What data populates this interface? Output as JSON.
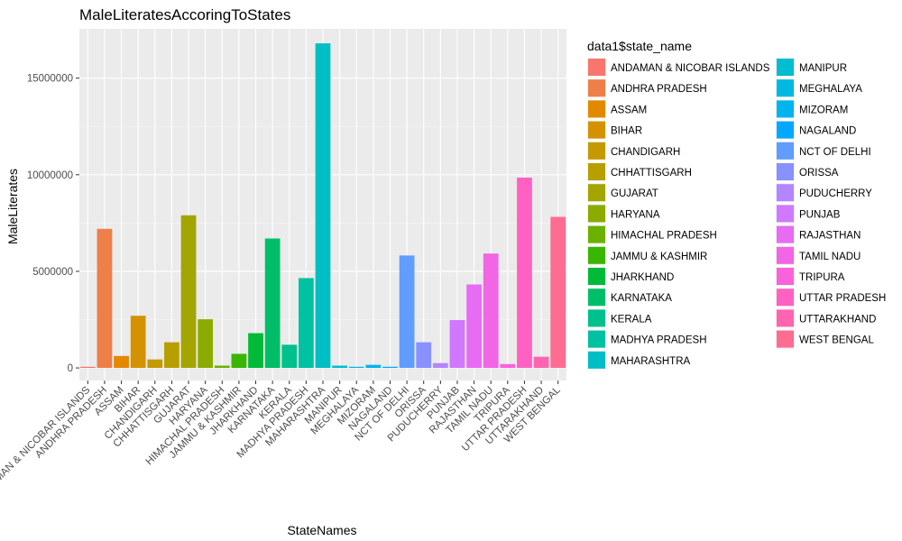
{
  "chart_data": {
    "type": "bar",
    "title": "MaleLiteratesAccoringToStates",
    "xlabel": "StateNames",
    "ylabel": "MaleLiterates",
    "legend_title": "data1$state_name",
    "legend_position": "right",
    "ylim": [
      -650000,
      17550000
    ],
    "yticks": [
      0,
      5000000,
      10000000,
      15000000
    ],
    "ytick_labels": [
      "0",
      "5000000",
      "10000000",
      "15000000"
    ],
    "grid": true,
    "categories": [
      "ANDAMAN & NICOBAR ISLANDS",
      "ANDHRA PRADESH",
      "ASSAM",
      "BIHAR",
      "CHANDIGARH",
      "CHHATTISGARH",
      "GUJARAT",
      "HARYANA",
      "HIMACHAL PRADESH",
      "JAMMU & KASHMIR",
      "JHARKHAND",
      "KARNATAKA",
      "KERALA",
      "MADHYA PRADESH",
      "MAHARASHTRA",
      "MANIPUR",
      "MEGHALAYA",
      "MIZORAM",
      "NAGALAND",
      "NCT OF DELHI",
      "ORISSA",
      "PUDUCHERRY",
      "PUNJAB",
      "RAJASTHAN",
      "TAMIL NADU",
      "TRIPURA",
      "UTTAR PRADESH",
      "UTTARAKHAND",
      "WEST BENGAL"
    ],
    "values": [
      60000,
      7200000,
      620000,
      2700000,
      440000,
      1330000,
      7900000,
      2520000,
      120000,
      730000,
      1800000,
      6700000,
      1200000,
      4650000,
      16800000,
      120000,
      60000,
      160000,
      60000,
      5820000,
      1330000,
      250000,
      2480000,
      4320000,
      5920000,
      200000,
      9850000,
      580000,
      7820000
    ],
    "colors": [
      "#F8766D",
      "#EF7F48",
      "#E38900",
      "#D49200",
      "#C49A00",
      "#B79F00",
      "#A3A500",
      "#8CAB00",
      "#6BB100",
      "#39B600",
      "#00BA38",
      "#00BE67",
      "#00C08B",
      "#00C1A2",
      "#00BFC4",
      "#00BDD0",
      "#00B9E3",
      "#00B4F0",
      "#00A9FF",
      "#619CFF",
      "#8891FF",
      "#B385FF",
      "#D078FF",
      "#E76BF3",
      "#F265E4",
      "#FA62DB",
      "#FF61C3",
      "#FF64B0",
      "#FF6C91"
    ]
  }
}
